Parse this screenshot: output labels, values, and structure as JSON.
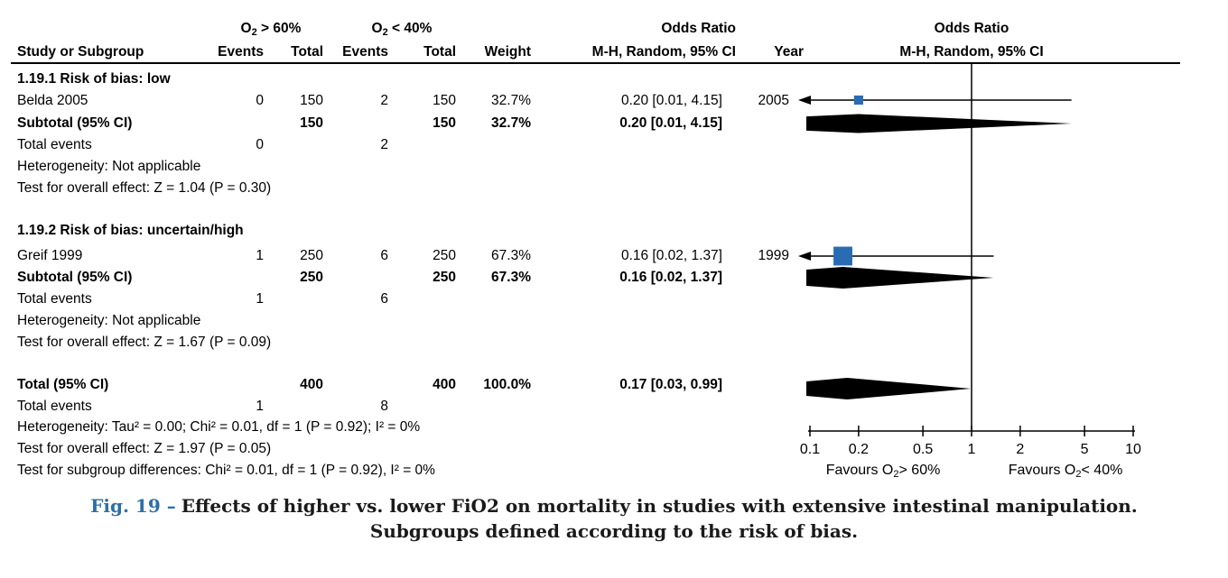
{
  "headers": {
    "group1": {
      "base": "O",
      "sub": "2",
      "rest": "> 60%"
    },
    "group2": {
      "base": "O",
      "sub": "2",
      "rest": "< 40%"
    },
    "or1_title": "Odds Ratio",
    "or1_sub": "M-H, Random, 95% CI",
    "or2_title": "Odds Ratio",
    "or2_sub": "M-H, Random, 95% CI",
    "study": "Study or Subgroup",
    "events1": "Events",
    "total1": "Total",
    "events2": "Events",
    "total2": "Total",
    "weight": "Weight",
    "year": "Year"
  },
  "sections": [
    {
      "heading": "1.19.1 Risk of bias: low",
      "studies": [
        {
          "study": "Belda 2005",
          "events1": "0",
          "total1": "150",
          "events2": "2",
          "total2": "150",
          "weight": "32.7%",
          "or_ci": "0.20 [0.01, 4.15]",
          "year": "2005"
        }
      ],
      "subtotal": {
        "label": "Subtotal (95% CI)",
        "total1": "150",
        "total2": "150",
        "weight": "32.7%",
        "or_ci": "0.20 [0.01, 4.15]"
      },
      "total_events": {
        "label": "Total events",
        "events1": "0",
        "events2": "2"
      },
      "heterogeneity": "Heterogeneity: Not applicable",
      "overall_effect": "Test for overall effect: Z = 1.04 (P = 0.30)"
    },
    {
      "heading": "1.19.2 Risk of bias: uncertain/high",
      "studies": [
        {
          "study": "Greif 1999",
          "events1": "1",
          "total1": "250",
          "events2": "6",
          "total2": "250",
          "weight": "67.3%",
          "or_ci": "0.16 [0.02, 1.37]",
          "year": "1999"
        }
      ],
      "subtotal": {
        "label": "Subtotal (95% CI)",
        "total1": "250",
        "total2": "250",
        "weight": "67.3%",
        "or_ci": "0.16 [0.02, 1.37]"
      },
      "total_events": {
        "label": "Total events",
        "events1": "1",
        "events2": "6"
      },
      "heterogeneity": "Heterogeneity: Not applicable",
      "overall_effect": "Test for overall effect: Z = 1.67 (P = 0.09)"
    }
  ],
  "total_section": {
    "label": "Total (95% CI)",
    "total1": "400",
    "total2": "400",
    "weight": "100.0%",
    "or_ci": "0.17 [0.03, 0.99]",
    "total_events": {
      "label": "Total events",
      "events1": "1",
      "events2": "8"
    },
    "heterogeneity": "Heterogeneity: Tau² = 0.00; Chi² = 0.01, df = 1 (P = 0.92); I² = 0%",
    "overall_effect": "Test for overall effect: Z = 1.97 (P = 0.05)",
    "subgroup_diff": "Test for subgroup differences: Chi² = 0.01, df = 1 (P = 0.92), I² = 0%"
  },
  "caption": {
    "label": "Fig. 19 –",
    "line1": "Effects of higher vs. lower FiO2 on mortality in studies with extensive intestinal manipulation.",
    "line2": "Subgroups defined according to the risk of bias.",
    "label_color": "#2c6fa8"
  },
  "chart_data": {
    "type": "forest",
    "scale": "log10",
    "effect_measure": "Odds Ratio (M-H, Random, 95% CI)",
    "axis": {
      "min": 0.1,
      "max": 10,
      "ticks": [
        0.1,
        0.2,
        0.5,
        1,
        2,
        5,
        10
      ],
      "null_line": 1
    },
    "marker_color": "#2a6cb3",
    "summary_color": "#000000",
    "studies": [
      {
        "name": "Belda 2005",
        "or": 0.2,
        "ci_low": 0.01,
        "ci_high": 4.15,
        "weight_pct": 32.7,
        "year": "2005"
      },
      {
        "name": "Greif 1999",
        "or": 0.16,
        "ci_low": 0.02,
        "ci_high": 1.37,
        "weight_pct": 67.3,
        "year": "1999"
      }
    ],
    "diamonds": [
      {
        "name": "Subtotal 1.19.1",
        "or": 0.2,
        "ci_low": 0.01,
        "ci_high": 4.15
      },
      {
        "name": "Subtotal 1.19.2",
        "or": 0.16,
        "ci_low": 0.02,
        "ci_high": 1.37
      },
      {
        "name": "Total",
        "or": 0.17,
        "ci_low": 0.03,
        "ci_high": 0.99
      }
    ],
    "favours_left": {
      "base": "Favours O",
      "sub": "2",
      "rest": "> 60%"
    },
    "favours_right": {
      "base": "Favours O",
      "sub": "2",
      "rest": "< 40%"
    }
  }
}
